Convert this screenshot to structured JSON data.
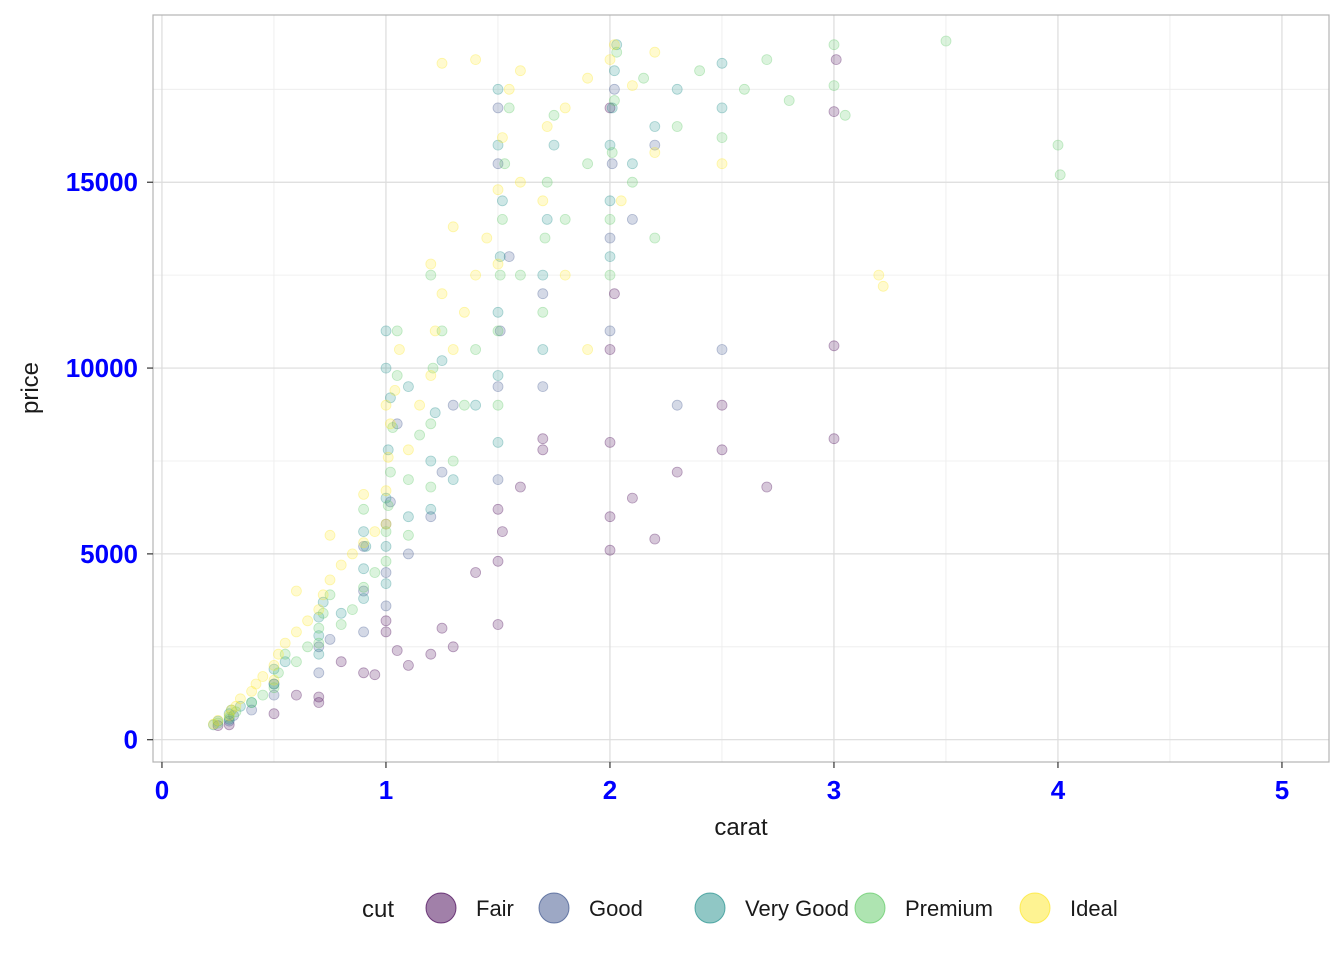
{
  "chart_data": {
    "type": "scatter",
    "title": "",
    "xlabel": "carat",
    "ylabel": "price",
    "xlim": [
      -0.04,
      5.21
    ],
    "ylim": [
      -600,
      19500
    ],
    "x_ticks": [
      0,
      1,
      2,
      3,
      4,
      5
    ],
    "x_tick_labels": [
      "0",
      "1",
      "2",
      "3",
      "4",
      "5"
    ],
    "y_ticks": [
      0,
      5000,
      10000,
      15000
    ],
    "y_tick_labels": [
      "0",
      "5000",
      "10000",
      "15000"
    ],
    "grid": true,
    "tick_label_color": "#0000ff",
    "legend": {
      "title": "cut",
      "position": "bottom",
      "entries": [
        {
          "label": "Fair",
          "color": "#440154"
        },
        {
          "label": "Good",
          "color": "#3b528b"
        },
        {
          "label": "Very Good",
          "color": "#21908c"
        },
        {
          "label": "Premium",
          "color": "#5dc963"
        },
        {
          "label": "Ideal",
          "color": "#fde725"
        }
      ]
    },
    "point_alpha": 0.1,
    "series": [
      {
        "name": "Fair",
        "color": "#440154",
        "points": [
          [
            0.7,
            1000
          ],
          [
            0.7,
            1150
          ],
          [
            0.9,
            1800
          ],
          [
            0.95,
            1750
          ],
          [
            1.0,
            2900
          ],
          [
            1.0,
            3200
          ],
          [
            1.05,
            2400
          ],
          [
            1.1,
            2000
          ],
          [
            1.2,
            2300
          ],
          [
            1.3,
            2500
          ],
          [
            1.5,
            3100
          ],
          [
            1.5,
            4800
          ],
          [
            1.5,
            6200
          ],
          [
            1.52,
            5600
          ],
          [
            1.7,
            7800
          ],
          [
            1.7,
            8100
          ],
          [
            2.0,
            5100
          ],
          [
            2.0,
            6000
          ],
          [
            2.0,
            8000
          ],
          [
            2.0,
            10500
          ],
          [
            2.02,
            12000
          ],
          [
            2.1,
            6500
          ],
          [
            2.2,
            5400
          ],
          [
            2.3,
            7200
          ],
          [
            2.5,
            7800
          ],
          [
            2.5,
            9000
          ],
          [
            2.7,
            6800
          ],
          [
            3.0,
            8100
          ],
          [
            3.0,
            10600
          ],
          [
            3.01,
            18300
          ],
          [
            3.0,
            16900
          ],
          [
            2.0,
            17000
          ],
          [
            0.5,
            700
          ],
          [
            0.3,
            400
          ],
          [
            0.25,
            380
          ],
          [
            0.6,
            1200
          ],
          [
            0.8,
            2100
          ],
          [
            1.25,
            3000
          ],
          [
            1.4,
            4500
          ],
          [
            1.6,
            6800
          ]
        ]
      },
      {
        "name": "Good",
        "color": "#3b528b",
        "points": [
          [
            0.3,
            500
          ],
          [
            0.32,
            650
          ],
          [
            0.4,
            800
          ],
          [
            0.5,
            1200
          ],
          [
            0.5,
            1500
          ],
          [
            0.7,
            1800
          ],
          [
            0.7,
            2500
          ],
          [
            0.75,
            2700
          ],
          [
            0.9,
            2900
          ],
          [
            0.9,
            4000
          ],
          [
            1.0,
            3600
          ],
          [
            1.0,
            4500
          ],
          [
            1.0,
            5800
          ],
          [
            1.02,
            6400
          ],
          [
            1.1,
            5000
          ],
          [
            1.2,
            6000
          ],
          [
            1.25,
            7200
          ],
          [
            1.5,
            7000
          ],
          [
            1.5,
            9500
          ],
          [
            1.51,
            11000
          ],
          [
            1.55,
            13000
          ],
          [
            1.7,
            9500
          ],
          [
            1.7,
            12000
          ],
          [
            2.0,
            11000
          ],
          [
            2.0,
            13500
          ],
          [
            2.01,
            15500
          ],
          [
            2.02,
            17500
          ],
          [
            2.1,
            14000
          ],
          [
            2.2,
            16000
          ],
          [
            2.3,
            9000
          ],
          [
            1.5,
            15500
          ],
          [
            1.5,
            17000
          ],
          [
            2.5,
            10500
          ],
          [
            0.9,
            5200
          ],
          [
            1.05,
            8500
          ],
          [
            1.3,
            9000
          ]
        ]
      },
      {
        "name": "Very Good",
        "color": "#21908c",
        "points": [
          [
            0.23,
            400
          ],
          [
            0.25,
            500
          ],
          [
            0.3,
            550
          ],
          [
            0.3,
            700
          ],
          [
            0.31,
            800
          ],
          [
            0.35,
            900
          ],
          [
            0.4,
            1000
          ],
          [
            0.5,
            1500
          ],
          [
            0.5,
            1900
          ],
          [
            0.55,
            2100
          ],
          [
            0.7,
            2300
          ],
          [
            0.7,
            2800
          ],
          [
            0.7,
            3300
          ],
          [
            0.72,
            3700
          ],
          [
            0.8,
            3400
          ],
          [
            0.9,
            3800
          ],
          [
            0.9,
            4600
          ],
          [
            0.91,
            5200
          ],
          [
            1.0,
            4200
          ],
          [
            1.0,
            5200
          ],
          [
            1.0,
            6500
          ],
          [
            1.01,
            7800
          ],
          [
            1.02,
            9200
          ],
          [
            1.1,
            6000
          ],
          [
            1.2,
            6200
          ],
          [
            1.2,
            7500
          ],
          [
            1.22,
            8800
          ],
          [
            1.3,
            7000
          ],
          [
            1.5,
            8000
          ],
          [
            1.5,
            9800
          ],
          [
            1.5,
            11500
          ],
          [
            1.51,
            13000
          ],
          [
            1.52,
            14500
          ],
          [
            1.5,
            16000
          ],
          [
            1.5,
            17500
          ],
          [
            1.7,
            10500
          ],
          [
            1.7,
            12500
          ],
          [
            1.72,
            14000
          ],
          [
            1.75,
            16000
          ],
          [
            2.0,
            13000
          ],
          [
            2.0,
            14500
          ],
          [
            2.0,
            16000
          ],
          [
            2.01,
            17000
          ],
          [
            2.02,
            18000
          ],
          [
            2.03,
            18700
          ],
          [
            2.1,
            15500
          ],
          [
            2.2,
            16500
          ],
          [
            2.3,
            17500
          ],
          [
            2.5,
            17000
          ],
          [
            2.5,
            18200
          ],
          [
            1.0,
            10000
          ],
          [
            1.0,
            11000
          ],
          [
            0.9,
            5600
          ],
          [
            1.1,
            9500
          ],
          [
            1.25,
            10200
          ],
          [
            1.4,
            9000
          ]
        ]
      },
      {
        "name": "Premium",
        "color": "#5dc963",
        "points": [
          [
            0.25,
            450
          ],
          [
            0.3,
            600
          ],
          [
            0.33,
            750
          ],
          [
            0.4,
            1000
          ],
          [
            0.45,
            1200
          ],
          [
            0.5,
            1400
          ],
          [
            0.52,
            1800
          ],
          [
            0.55,
            2300
          ],
          [
            0.6,
            2100
          ],
          [
            0.65,
            2500
          ],
          [
            0.7,
            2600
          ],
          [
            0.7,
            3000
          ],
          [
            0.72,
            3400
          ],
          [
            0.75,
            3900
          ],
          [
            0.8,
            3100
          ],
          [
            0.85,
            3500
          ],
          [
            0.9,
            4100
          ],
          [
            0.95,
            4500
          ],
          [
            1.0,
            4800
          ],
          [
            1.0,
            5600
          ],
          [
            1.01,
            6300
          ],
          [
            1.02,
            7200
          ],
          [
            1.03,
            8400
          ],
          [
            1.05,
            9800
          ],
          [
            1.1,
            5500
          ],
          [
            1.1,
            7000
          ],
          [
            1.15,
            8200
          ],
          [
            1.2,
            6800
          ],
          [
            1.2,
            8500
          ],
          [
            1.21,
            10000
          ],
          [
            1.25,
            11000
          ],
          [
            1.3,
            7500
          ],
          [
            1.35,
            9000
          ],
          [
            1.4,
            10500
          ],
          [
            1.5,
            9000
          ],
          [
            1.5,
            11000
          ],
          [
            1.51,
            12500
          ],
          [
            1.52,
            14000
          ],
          [
            1.53,
            15500
          ],
          [
            1.55,
            17000
          ],
          [
            1.6,
            12500
          ],
          [
            1.7,
            11500
          ],
          [
            1.71,
            13500
          ],
          [
            1.72,
            15000
          ],
          [
            1.75,
            16800
          ],
          [
            1.8,
            14000
          ],
          [
            1.9,
            15500
          ],
          [
            2.0,
            12500
          ],
          [
            2.0,
            14000
          ],
          [
            2.01,
            15800
          ],
          [
            2.02,
            17200
          ],
          [
            2.03,
            18500
          ],
          [
            2.1,
            15000
          ],
          [
            2.15,
            17800
          ],
          [
            2.2,
            13500
          ],
          [
            2.3,
            16500
          ],
          [
            2.4,
            18000
          ],
          [
            2.5,
            16200
          ],
          [
            2.6,
            17500
          ],
          [
            2.7,
            18300
          ],
          [
            3.0,
            18700
          ],
          [
            3.0,
            17600
          ],
          [
            3.05,
            16800
          ],
          [
            4.0,
            16000
          ],
          [
            4.01,
            15200
          ],
          [
            3.5,
            18800
          ],
          [
            2.8,
            17200
          ],
          [
            1.2,
            12500
          ],
          [
            1.05,
            11000
          ],
          [
            0.9,
            6200
          ]
        ]
      },
      {
        "name": "Ideal",
        "color": "#fde725",
        "points": [
          [
            0.23,
            420
          ],
          [
            0.25,
            520
          ],
          [
            0.3,
            650
          ],
          [
            0.31,
            800
          ],
          [
            0.33,
            900
          ],
          [
            0.35,
            1100
          ],
          [
            0.4,
            1300
          ],
          [
            0.42,
            1500
          ],
          [
            0.45,
            1700
          ],
          [
            0.5,
            1600
          ],
          [
            0.5,
            2000
          ],
          [
            0.52,
            2300
          ],
          [
            0.55,
            2600
          ],
          [
            0.6,
            2900
          ],
          [
            0.65,
            3200
          ],
          [
            0.7,
            3500
          ],
          [
            0.72,
            3900
          ],
          [
            0.75,
            4300
          ],
          [
            0.8,
            4700
          ],
          [
            0.85,
            5000
          ],
          [
            0.9,
            5300
          ],
          [
            0.95,
            5600
          ],
          [
            1.0,
            5800
          ],
          [
            1.0,
            6700
          ],
          [
            1.01,
            7600
          ],
          [
            1.02,
            8500
          ],
          [
            1.04,
            9400
          ],
          [
            1.06,
            10500
          ],
          [
            1.1,
            7800
          ],
          [
            1.15,
            9000
          ],
          [
            1.2,
            9800
          ],
          [
            1.22,
            11000
          ],
          [
            1.25,
            12000
          ],
          [
            1.3,
            10500
          ],
          [
            1.35,
            11500
          ],
          [
            1.4,
            12500
          ],
          [
            1.45,
            13500
          ],
          [
            1.5,
            12800
          ],
          [
            1.5,
            14800
          ],
          [
            1.52,
            16200
          ],
          [
            1.55,
            17500
          ],
          [
            1.6,
            15000
          ],
          [
            1.7,
            14500
          ],
          [
            1.72,
            16500
          ],
          [
            1.8,
            17000
          ],
          [
            1.9,
            17800
          ],
          [
            2.0,
            18300
          ],
          [
            2.02,
            18700
          ],
          [
            2.1,
            17600
          ],
          [
            2.2,
            18500
          ],
          [
            1.8,
            12500
          ],
          [
            1.9,
            10500
          ],
          [
            2.05,
            14500
          ],
          [
            2.2,
            15800
          ],
          [
            0.6,
            4000
          ],
          [
            0.75,
            5500
          ],
          [
            0.9,
            6600
          ],
          [
            1.0,
            9000
          ],
          [
            1.2,
            12800
          ],
          [
            1.3,
            13800
          ],
          [
            3.2,
            12500
          ],
          [
            3.22,
            12200
          ],
          [
            2.5,
            15500
          ],
          [
            1.6,
            18000
          ],
          [
            1.4,
            18300
          ],
          [
            1.25,
            18200
          ]
        ]
      }
    ]
  }
}
